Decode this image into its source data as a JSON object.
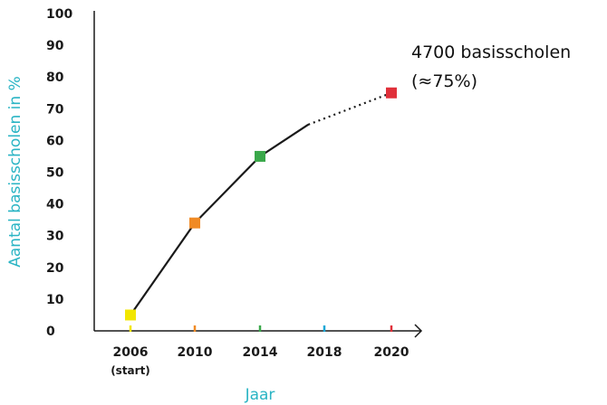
{
  "chart_data": {
    "type": "line",
    "title": "",
    "xlabel": "Jaar",
    "ylabel": "Aantal basisscholen in %",
    "x_ticks": [
      2006,
      2010,
      2014,
      2018,
      2020
    ],
    "x_tick_sub": {
      "2006": "(start)"
    },
    "x_tick_colors": [
      "#f2e600",
      "#f08a24",
      "#3aa84a",
      "#1aa7d6",
      "#e0303a"
    ],
    "y_ticks": [
      0,
      10,
      20,
      30,
      40,
      50,
      60,
      70,
      80,
      90,
      100
    ],
    "ylim": [
      0,
      100
    ],
    "solid_line": [
      {
        "x": 2006,
        "y": 5
      },
      {
        "x": 2010,
        "y": 34
      },
      {
        "x": 2014,
        "y": 55
      },
      {
        "x": 2017,
        "y": 65
      }
    ],
    "dotted_line": [
      {
        "x": 2017,
        "y": 65
      },
      {
        "x": 2020,
        "y": 75
      }
    ],
    "markers": [
      {
        "x": 2006,
        "y": 5,
        "color": "#f2e600"
      },
      {
        "x": 2010,
        "y": 34,
        "color": "#f08a24"
      },
      {
        "x": 2014,
        "y": 55,
        "color": "#3aa84a"
      },
      {
        "x": 2020,
        "y": 75,
        "color": "#e0303a"
      }
    ],
    "annotation_lines": [
      "4700 basisscholen",
      "(≈75%)"
    ],
    "colors": {
      "axis_title": "#2ab4c4",
      "line": "#1a1a1a"
    }
  }
}
